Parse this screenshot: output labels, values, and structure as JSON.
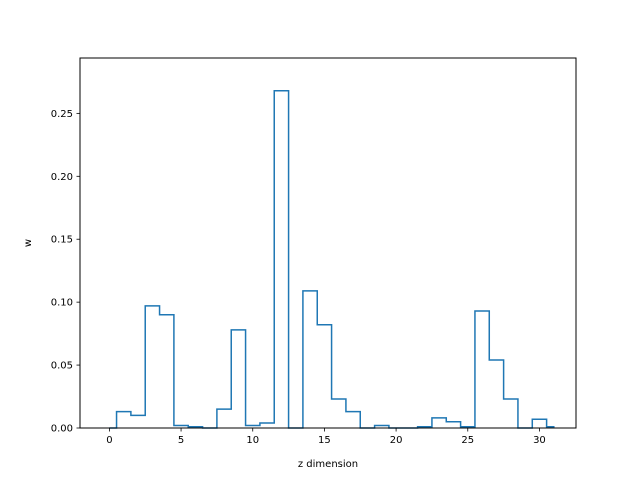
{
  "chart_data": {
    "type": "bar",
    "style": "step-histogram",
    "title": "",
    "xlabel": "z dimension",
    "ylabel": "w",
    "xlim": [
      -2.05,
      32.55
    ],
    "ylim": [
      0.0,
      0.294
    ],
    "grid": false,
    "color": "#1f77b4",
    "x_ticks": [
      0,
      5,
      10,
      15,
      20,
      25,
      30
    ],
    "x_tick_labels": [
      "0",
      "5",
      "10",
      "15",
      "20",
      "25",
      "30"
    ],
    "y_ticks": [
      0.0,
      0.05,
      0.1,
      0.15,
      0.2,
      0.25
    ],
    "y_tick_labels": [
      "0.00",
      "0.05",
      "0.10",
      "0.15",
      "0.20",
      "0.25"
    ],
    "bin_edges": [
      0,
      0.5,
      1.5,
      2.5,
      3.5,
      4.5,
      5.5,
      6.5,
      7.5,
      8.5,
      9.5,
      10.5,
      11.5,
      12.5,
      13.5,
      14.5,
      15.5,
      16.5,
      17.5,
      18.5,
      19.5,
      20.5,
      21.5,
      22.5,
      23.5,
      24.5,
      25.5,
      26.5,
      27.5,
      28.5,
      29.5,
      30.5,
      31
    ],
    "values": [
      0.0,
      0.013,
      0.01,
      0.097,
      0.09,
      0.002,
      0.001,
      0.0,
      0.015,
      0.078,
      0.002,
      0.004,
      0.268,
      0.0,
      0.109,
      0.082,
      0.023,
      0.013,
      0.0,
      0.002,
      0.0,
      0.0,
      0.001,
      0.008,
      0.005,
      0.001,
      0.093,
      0.054,
      0.023,
      0.0,
      0.007,
      0.001
    ]
  }
}
